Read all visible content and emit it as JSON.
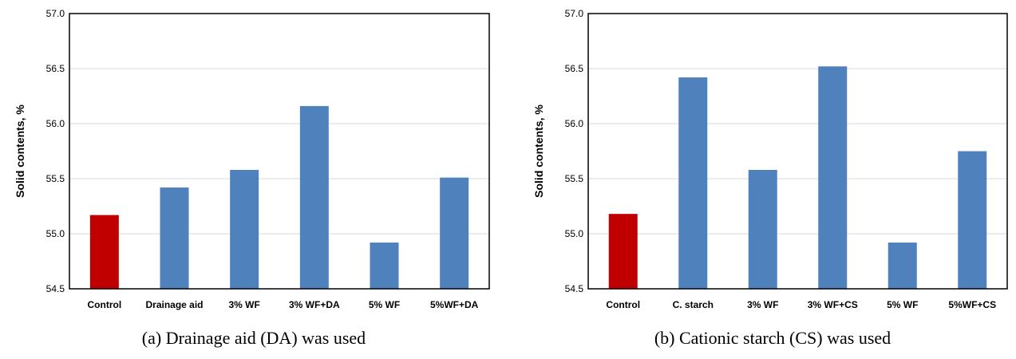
{
  "chart_data": [
    {
      "type": "bar",
      "caption": "(a) Drainage aid (DA) was used",
      "ylabel": "Solid contents, %",
      "xlabel": "",
      "ylim": [
        54.5,
        57.0
      ],
      "yticks": [
        "54.5",
        "55.0",
        "55.5",
        "56.0",
        "56.5",
        "57.0"
      ],
      "grid": true,
      "legend": "none",
      "categories": [
        "Control",
        "Drainage aid",
        "3% WF",
        "3% WF+DA",
        "5% WF",
        "5%WF+DA"
      ],
      "values": [
        55.17,
        55.42,
        55.58,
        56.16,
        54.92,
        55.51
      ],
      "colors": [
        "#C00000",
        "#4F81BD",
        "#4F81BD",
        "#4F81BD",
        "#4F81BD",
        "#4F81BD"
      ]
    },
    {
      "type": "bar",
      "caption": "(b) Cationic starch (CS) was used",
      "ylabel": "Solid contents, %",
      "xlabel": "",
      "ylim": [
        54.5,
        57.0
      ],
      "yticks": [
        "54.5",
        "55.0",
        "55.5",
        "56.0",
        "56.5",
        "57.0"
      ],
      "grid": true,
      "legend": "none",
      "categories": [
        "Control",
        "C. starch",
        "3% WF",
        "3% WF+CS",
        "5% WF",
        "5%WF+CS"
      ],
      "values": [
        55.18,
        56.42,
        55.58,
        56.52,
        54.92,
        55.75
      ],
      "colors": [
        "#C00000",
        "#4F81BD",
        "#4F81BD",
        "#4F81BD",
        "#4F81BD",
        "#4F81BD"
      ]
    }
  ]
}
